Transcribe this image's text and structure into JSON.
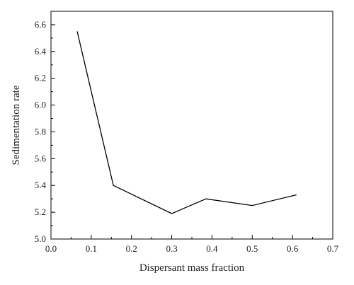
{
  "chart_data": {
    "type": "line",
    "xlabel": "Dispersant mass fraction",
    "ylabel": "Sedimentation rate",
    "xlim": [
      0.0,
      0.7
    ],
    "ylim": [
      5.0,
      6.7
    ],
    "x_ticks": [
      "0.0",
      "0.1",
      "0.2",
      "0.3",
      "0.4",
      "0.5",
      "0.6",
      "0.7"
    ],
    "y_ticks": [
      "5.0",
      "5.2",
      "5.4",
      "5.6",
      "5.8",
      "6.0",
      "6.2",
      "6.4",
      "6.6"
    ],
    "grid": false,
    "series": [
      {
        "x": [
          0.065,
          0.155,
          0.3,
          0.385,
          0.5,
          0.61
        ],
        "y": [
          6.55,
          5.4,
          5.19,
          5.3,
          5.25,
          5.33
        ],
        "color": "#000000"
      }
    ]
  }
}
